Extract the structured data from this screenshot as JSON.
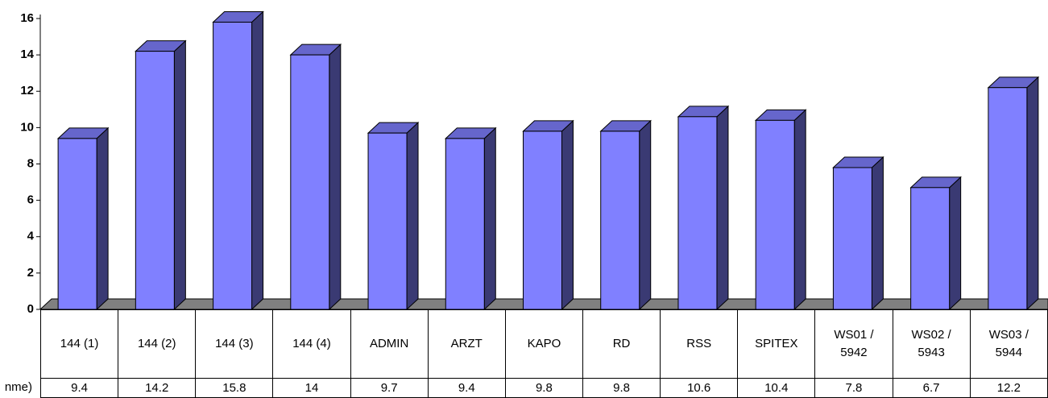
{
  "chart_data": {
    "type": "bar3d",
    "categories": [
      "144 (1)",
      "144 (2)",
      "144 (3)",
      "144 (4)",
      "ADMIN",
      "ARZT",
      "KAPO",
      "RD",
      "RSS",
      "SPITEX",
      "WS01 / 5942",
      "WS02 / 5943",
      "WS03 / 5944"
    ],
    "series": [
      {
        "name": "nme)",
        "color": "#8080ff",
        "values": [
          9.4,
          14.2,
          15.8,
          14,
          9.7,
          9.4,
          9.8,
          9.8,
          10.6,
          10.4,
          7.8,
          6.7,
          12.2
        ]
      }
    ],
    "ylim": [
      0,
      16
    ],
    "yticks": [
      0,
      2,
      4,
      6,
      8,
      10,
      12,
      14,
      16
    ]
  }
}
